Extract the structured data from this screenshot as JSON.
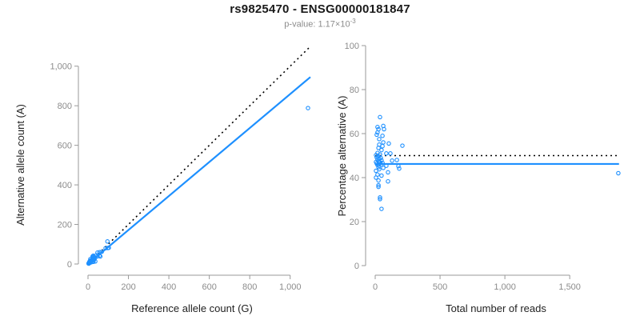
{
  "header": {
    "title": "rs9825470 - ENSG00000181847",
    "subtitle_prefix": "p-value: 1.17×10",
    "subtitle_exponent": "-3"
  },
  "colors": {
    "accent_blue": "#1E90FF",
    "line_black": "#000000",
    "axis_gray": "#999999",
    "tick_label_gray": "#8c8c8c",
    "axis_title_dark": "#222222"
  },
  "chart_data": [
    {
      "type": "scatter",
      "name": "allele-count-scatter",
      "xlabel": "Reference allele count (G)",
      "ylabel": "Alternative allele count (A)",
      "xlim": [
        0,
        1100
      ],
      "ylim": [
        0,
        1100
      ],
      "xticks": [
        0,
        200,
        400,
        600,
        800,
        1000
      ],
      "yticks": [
        0,
        200,
        400,
        600,
        800,
        1000
      ],
      "grid": false,
      "legend": "none",
      "points": [
        [
          12,
          25
        ],
        [
          7,
          11
        ],
        [
          10,
          16
        ],
        [
          23,
          39
        ],
        [
          26,
          42
        ],
        [
          7,
          11
        ],
        [
          5,
          7
        ],
        [
          23,
          33
        ],
        [
          13,
          18
        ],
        [
          27,
          35
        ],
        [
          47,
          58
        ],
        [
          14,
          17
        ],
        [
          96,
          114
        ],
        [
          26,
          30
        ],
        [
          12,
          13
        ],
        [
          23,
          26
        ],
        [
          9,
          9
        ],
        [
          42,
          44
        ],
        [
          57,
          60
        ],
        [
          18,
          19
        ],
        [
          3,
          3
        ],
        [
          13,
          12
        ],
        [
          6,
          6
        ],
        [
          22,
          21
        ],
        [
          16,
          15
        ],
        [
          9,
          9
        ],
        [
          87,
          80
        ],
        [
          26,
          23
        ],
        [
          68,
          62
        ],
        [
          13,
          12
        ],
        [
          3,
          3
        ],
        [
          20,
          17
        ],
        [
          30,
          26
        ],
        [
          6,
          6
        ],
        [
          17,
          14
        ],
        [
          27,
          22
        ],
        [
          10,
          8
        ],
        [
          47,
          39
        ],
        [
          98,
          81
        ],
        [
          14,
          11
        ],
        [
          34,
          28
        ],
        [
          103,
          82
        ],
        [
          17,
          14
        ],
        [
          3,
          3
        ],
        [
          57,
          42
        ],
        [
          11,
          7
        ],
        [
          29,
          20
        ],
        [
          4,
          2
        ],
        [
          15,
          10
        ],
        [
          61,
          38
        ],
        [
          16,
          9
        ],
        [
          16,
          9
        ],
        [
          26,
          11
        ],
        [
          26,
          11
        ],
        [
          36,
          13
        ],
        [
          1088,
          788
        ]
      ],
      "lines": [
        {
          "name": "identity-line",
          "x": [
            0,
            1100
          ],
          "y": [
            0,
            1100
          ],
          "style": "dotted",
          "color": "#000000"
        },
        {
          "name": "fit-line",
          "x": [
            0,
            1100
          ],
          "y": [
            0,
            945
          ],
          "style": "solid",
          "color": "#1E90FF"
        }
      ]
    },
    {
      "type": "scatter",
      "name": "percentage-alternative-scatter",
      "xlabel": "Total number of reads",
      "ylabel": "Percentage alternative (A)",
      "xlim": [
        0,
        1900
      ],
      "ylim": [
        0,
        100
      ],
      "xticks": [
        0,
        500,
        1000,
        1500
      ],
      "yticks": [
        0,
        20,
        40,
        60,
        80,
        100
      ],
      "grid": false,
      "legend": "none",
      "points": [
        [
          37,
          67.5
        ],
        [
          18,
          63
        ],
        [
          25,
          62
        ],
        [
          62,
          63.5
        ],
        [
          68,
          62
        ],
        [
          18,
          60.5
        ],
        [
          12,
          59.5
        ],
        [
          56,
          59
        ],
        [
          31,
          57.5
        ],
        [
          62,
          56
        ],
        [
          105,
          55.5
        ],
        [
          31,
          55
        ],
        [
          210,
          54.5
        ],
        [
          56,
          54.3
        ],
        [
          25,
          53.5
        ],
        [
          49,
          52.5
        ],
        [
          18,
          51.2
        ],
        [
          86,
          51
        ],
        [
          117,
          51
        ],
        [
          37,
          50.5
        ],
        [
          6,
          50.2
        ],
        [
          25,
          49.6
        ],
        [
          12,
          49.2
        ],
        [
          43,
          48.9
        ],
        [
          31,
          48.6
        ],
        [
          18,
          48.3
        ],
        [
          167,
          48
        ],
        [
          49,
          47.9
        ],
        [
          130,
          47.7
        ],
        [
          25,
          47.4
        ],
        [
          6,
          47.1
        ],
        [
          37,
          46.9
        ],
        [
          56,
          46.7
        ],
        [
          12,
          46.4
        ],
        [
          31,
          46.1
        ],
        [
          49,
          45.9
        ],
        [
          18,
          45.7
        ],
        [
          86,
          45.4
        ],
        [
          179,
          45.2
        ],
        [
          25,
          44.7
        ],
        [
          62,
          44.4
        ],
        [
          185,
          44.1
        ],
        [
          31,
          43.8
        ],
        [
          6,
          43.1
        ],
        [
          99,
          42.4
        ],
        [
          18,
          41.4
        ],
        [
          49,
          40.9
        ],
        [
          6,
          40
        ],
        [
          25,
          38.7
        ],
        [
          99,
          38.3
        ],
        [
          25,
          36.5
        ],
        [
          25,
          35.8
        ],
        [
          37,
          31
        ],
        [
          37,
          30.2
        ],
        [
          49,
          25.8
        ],
        [
          1875,
          42
        ]
      ],
      "lines": [
        {
          "name": "null-line",
          "x": [
            0,
            1880
          ],
          "y": [
            50,
            50
          ],
          "style": "dotted",
          "color": "#000000"
        },
        {
          "name": "mean-line",
          "x": [
            0,
            1880
          ],
          "y": [
            46.2,
            46.2
          ],
          "style": "solid",
          "color": "#1E90FF"
        }
      ]
    }
  ]
}
